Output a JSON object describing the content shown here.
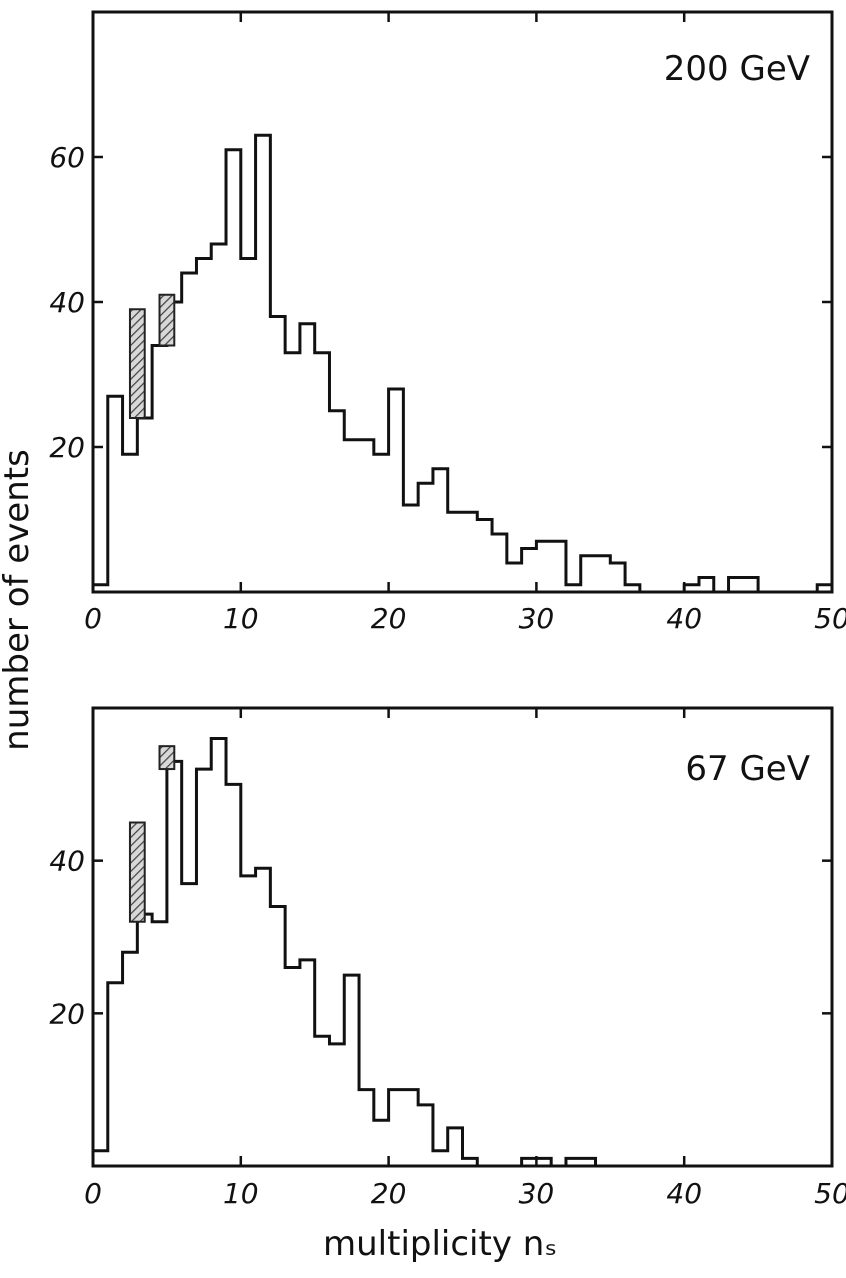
{
  "ylabel": "number of events",
  "xlabel": "multiplicity nₛ",
  "colors": {
    "ink": "#111111",
    "hatch": "#555555"
  },
  "chart_data": [
    {
      "type": "histogram",
      "energy_label": "200 GeV",
      "xlim": [
        0,
        50
      ],
      "ylim": [
        0,
        80
      ],
      "x_ticks": [
        "0",
        "10",
        "20",
        "30",
        "40",
        "50"
      ],
      "y_ticks": [
        "20",
        "40",
        "60"
      ],
      "x_tick_values": [
        0,
        10,
        20,
        30,
        40,
        50
      ],
      "y_tick_values": [
        20,
        40,
        60
      ],
      "bin_edges": [
        0,
        1,
        2,
        3,
        4,
        5,
        6,
        7,
        8,
        9,
        10,
        11,
        12,
        13,
        14,
        15,
        16,
        17,
        18,
        19,
        20,
        21,
        22,
        23,
        24,
        25,
        26,
        27,
        28,
        29,
        30,
        31,
        32,
        33,
        34,
        35,
        36,
        37,
        38,
        39,
        40,
        41,
        42,
        43,
        44,
        45,
        46,
        47,
        48,
        49,
        50
      ],
      "counts": [
        1,
        27,
        19,
        24,
        34,
        40,
        44,
        46,
        48,
        61,
        46,
        63,
        38,
        33,
        37,
        33,
        25,
        21,
        21,
        19,
        28,
        12,
        15,
        17,
        11,
        11,
        10,
        8,
        4,
        6,
        7,
        7,
        1,
        5,
        5,
        4,
        1,
        0,
        0,
        0,
        1,
        2,
        0,
        2,
        2,
        0,
        0,
        0,
        0,
        1
      ],
      "hatched_bars": [
        {
          "x0": 2.5,
          "x1": 3.5,
          "y0": 24,
          "y1": 39
        },
        {
          "x0": 4.5,
          "x1": 5.5,
          "y0": 34,
          "y1": 41
        }
      ]
    },
    {
      "type": "histogram",
      "energy_label": "67 GeV",
      "xlim": [
        0,
        50
      ],
      "ylim": [
        0,
        60
      ],
      "x_ticks": [
        "0",
        "10",
        "20",
        "30",
        "40",
        "50"
      ],
      "y_ticks": [
        "20",
        "40"
      ],
      "x_tick_values": [
        0,
        10,
        20,
        30,
        40,
        50
      ],
      "y_tick_values": [
        20,
        40
      ],
      "bin_edges": [
        0,
        1,
        2,
        3,
        4,
        5,
        6,
        7,
        8,
        9,
        10,
        11,
        12,
        13,
        14,
        15,
        16,
        17,
        18,
        19,
        20,
        21,
        22,
        23,
        24,
        25,
        26,
        27,
        28,
        29,
        30,
        31,
        32,
        33,
        34,
        35,
        36,
        37,
        38,
        39,
        40,
        41,
        42,
        43,
        44,
        45,
        46,
        47,
        48,
        49,
        50
      ],
      "counts": [
        2,
        24,
        28,
        33,
        32,
        53,
        37,
        52,
        56,
        50,
        38,
        39,
        34,
        26,
        27,
        17,
        16,
        25,
        10,
        6,
        10,
        10,
        8,
        2,
        5,
        1,
        0,
        0,
        0,
        1,
        1,
        0,
        1,
        1,
        0,
        0,
        0,
        0,
        0,
        0,
        0,
        0,
        0,
        0,
        0,
        0,
        0,
        0,
        0,
        0
      ],
      "hatched_bars": [
        {
          "x0": 2.5,
          "x1": 3.5,
          "y0": 32,
          "y1": 45
        },
        {
          "x0": 4.5,
          "x1": 5.5,
          "y0": 52,
          "y1": 55
        }
      ]
    }
  ]
}
